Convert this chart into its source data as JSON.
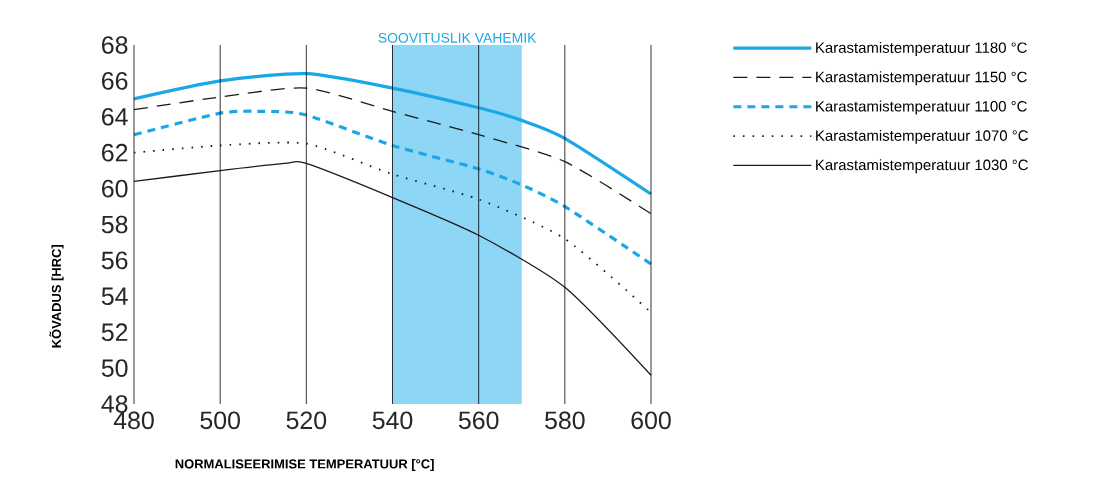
{
  "chart_data": {
    "type": "line",
    "xlabel": "NORMALISEERIMISE TEMPERATUUR [°C]",
    "ylabel": "KÕVADUS [HRC]",
    "xlim": [
      480,
      600
    ],
    "ylim": [
      48,
      68
    ],
    "xticks": [
      480,
      500,
      520,
      540,
      560,
      580,
      600
    ],
    "yticks": [
      48,
      50,
      52,
      54,
      56,
      58,
      60,
      62,
      64,
      66,
      68
    ],
    "grid": "x",
    "legend": "right",
    "bands": [
      {
        "axis": "x",
        "from": 540,
        "to": 570,
        "label": "SOOVITUSLIK VAHEMIK",
        "color": "#8dd6f5"
      }
    ],
    "series": [
      {
        "name": "Karastamistemperatuur 1180 °C",
        "color": "#1aa7e6",
        "line_style": "solid",
        "x": [
          480,
          500,
          520,
          540,
          560,
          570,
          580,
          600
        ],
        "values": [
          65.0,
          66.0,
          66.4,
          65.6,
          64.5,
          63.8,
          62.8,
          59.7
        ]
      },
      {
        "name": "Karastamistemperatuur 1150 °C",
        "color": "#1a1a1a",
        "line_style": "dashed",
        "x": [
          480,
          500,
          520,
          540,
          560,
          580,
          600
        ],
        "values": [
          64.4,
          65.1,
          65.6,
          64.3,
          63.0,
          61.5,
          58.6
        ]
      },
      {
        "name": "Karastamistemperatuur 1100 °C",
        "color": "#1aa7e6",
        "line_style": "dashed",
        "x": [
          480,
          500,
          510,
          520,
          540,
          560,
          570,
          580,
          600
        ],
        "values": [
          63.0,
          64.2,
          64.3,
          64.1,
          62.4,
          61.1,
          60.2,
          59.0,
          55.8
        ]
      },
      {
        "name": "Karastamistemperatuur 1070 °C",
        "color": "#1a1a1a",
        "line_style": "dotted",
        "x": [
          480,
          500,
          520,
          540,
          560,
          580,
          600
        ],
        "values": [
          62.0,
          62.4,
          62.5,
          60.8,
          59.4,
          57.2,
          53.1
        ]
      },
      {
        "name": "Karastamistemperatuur 1030 °C",
        "color": "#1a1a1a",
        "line_style": "solid",
        "x": [
          480,
          500,
          515,
          520,
          540,
          560,
          580,
          600
        ],
        "values": [
          60.4,
          61.0,
          61.4,
          61.4,
          59.5,
          57.4,
          54.5,
          49.6
        ]
      }
    ]
  }
}
